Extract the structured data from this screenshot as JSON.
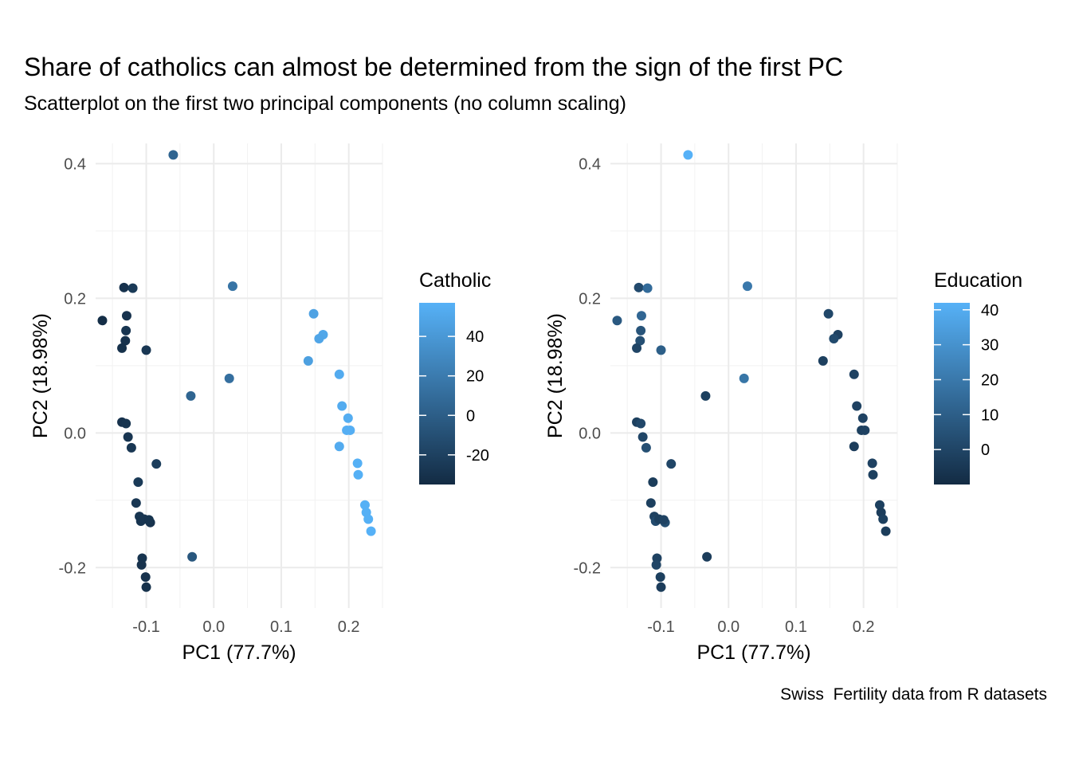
{
  "title": "Share of catholics can almost be determined from the sign of the first PC",
  "subtitle": "Scatterplot on the first two principal components (no column scaling)",
  "caption": "Swiss  Fertility data from R datasets",
  "chart_data": [
    {
      "type": "scatter",
      "xlabel": "PC1 (77.7%)",
      "ylabel": "PC2 (18.98%)",
      "xlim": [
        -0.175,
        0.25
      ],
      "ylim": [
        -0.26,
        0.43
      ],
      "x_ticks": [
        {
          "value": -0.1,
          "label": "-0.1"
        },
        {
          "value": 0.0,
          "label": "0.0"
        },
        {
          "value": 0.1,
          "label": "0.1"
        },
        {
          "value": 0.2,
          "label": "0.2"
        }
      ],
      "y_ticks": [
        {
          "value": -0.2,
          "label": "-0.2"
        },
        {
          "value": 0.0,
          "label": "0.0"
        },
        {
          "value": 0.2,
          "label": "0.2"
        },
        {
          "value": 0.4,
          "label": "0.4"
        }
      ],
      "grid": true,
      "legend": {
        "title": "Catholic",
        "placement": "right",
        "range": [
          -35,
          57
        ],
        "ticks": [
          {
            "value": -20,
            "label": "-20"
          },
          {
            "value": 0,
            "label": "0"
          },
          {
            "value": 20,
            "label": "20"
          },
          {
            "value": 40,
            "label": "40"
          }
        ],
        "color_low": "#132B43",
        "color_high": "#56B1F7"
      },
      "points": [
        {
          "x": -0.06,
          "y": 0.413,
          "c": 5
        },
        {
          "x": -0.133,
          "y": 0.216,
          "c": -30
        },
        {
          "x": -0.12,
          "y": 0.215,
          "c": -25
        },
        {
          "x": 0.028,
          "y": 0.218,
          "c": 15
        },
        {
          "x": -0.165,
          "y": 0.167,
          "c": -33
        },
        {
          "x": -0.129,
          "y": 0.174,
          "c": -30
        },
        {
          "x": -0.13,
          "y": 0.152,
          "c": -28
        },
        {
          "x": -0.131,
          "y": 0.137,
          "c": -30
        },
        {
          "x": -0.136,
          "y": 0.126,
          "c": -31
        },
        {
          "x": -0.1,
          "y": 0.123,
          "c": -27
        },
        {
          "x": 0.148,
          "y": 0.177,
          "c": 47
        },
        {
          "x": 0.162,
          "y": 0.146,
          "c": 50
        },
        {
          "x": 0.156,
          "y": 0.14,
          "c": 49
        },
        {
          "x": 0.14,
          "y": 0.107,
          "c": 45
        },
        {
          "x": 0.186,
          "y": 0.087,
          "c": 53
        },
        {
          "x": -0.034,
          "y": 0.055,
          "c": 5
        },
        {
          "x": 0.023,
          "y": 0.081,
          "c": 12
        },
        {
          "x": 0.19,
          "y": 0.04,
          "c": 53
        },
        {
          "x": 0.199,
          "y": 0.022,
          "c": 54
        },
        {
          "x": 0.197,
          "y": 0.004,
          "c": 55
        },
        {
          "x": 0.202,
          "y": 0.004,
          "c": 55
        },
        {
          "x": 0.186,
          "y": -0.02,
          "c": 53
        },
        {
          "x": -0.136,
          "y": 0.016,
          "c": -30
        },
        {
          "x": -0.13,
          "y": 0.014,
          "c": -29
        },
        {
          "x": -0.127,
          "y": -0.006,
          "c": -28
        },
        {
          "x": -0.122,
          "y": -0.022,
          "c": -27
        },
        {
          "x": 0.213,
          "y": -0.045,
          "c": 56
        },
        {
          "x": 0.214,
          "y": -0.062,
          "c": 56
        },
        {
          "x": -0.085,
          "y": -0.046,
          "c": -22
        },
        {
          "x": -0.112,
          "y": -0.073,
          "c": -25
        },
        {
          "x": -0.115,
          "y": -0.104,
          "c": -27
        },
        {
          "x": -0.11,
          "y": -0.124,
          "c": -28
        },
        {
          "x": -0.108,
          "y": -0.131,
          "c": -29
        },
        {
          "x": -0.103,
          "y": -0.128,
          "c": -28
        },
        {
          "x": -0.094,
          "y": -0.133,
          "c": -30
        },
        {
          "x": -0.096,
          "y": -0.129,
          "c": -29
        },
        {
          "x": 0.224,
          "y": -0.107,
          "c": 56
        },
        {
          "x": 0.226,
          "y": -0.118,
          "c": 56
        },
        {
          "x": 0.229,
          "y": -0.128,
          "c": 56
        },
        {
          "x": 0.233,
          "y": -0.146,
          "c": 57
        },
        {
          "x": -0.106,
          "y": -0.186,
          "c": -29
        },
        {
          "x": -0.107,
          "y": -0.196,
          "c": -30
        },
        {
          "x": -0.032,
          "y": -0.184,
          "c": -5
        },
        {
          "x": -0.101,
          "y": -0.214,
          "c": -30
        },
        {
          "x": -0.1,
          "y": -0.229,
          "c": -31
        }
      ]
    },
    {
      "type": "scatter",
      "xlabel": "PC1 (77.7%)",
      "ylabel": "PC2 (18.98%)",
      "xlim": [
        -0.175,
        0.25
      ],
      "ylim": [
        -0.26,
        0.43
      ],
      "x_ticks": [
        {
          "value": -0.1,
          "label": "-0.1"
        },
        {
          "value": 0.0,
          "label": "0.0"
        },
        {
          "value": 0.1,
          "label": "0.1"
        },
        {
          "value": 0.2,
          "label": "0.2"
        }
      ],
      "y_ticks": [
        {
          "value": -0.2,
          "label": "-0.2"
        },
        {
          "value": 0.0,
          "label": "0.0"
        },
        {
          "value": 0.2,
          "label": "0.2"
        },
        {
          "value": 0.4,
          "label": "0.4"
        }
      ],
      "grid": true,
      "legend": {
        "title": "Education",
        "placement": "right",
        "range": [
          -10,
          42
        ],
        "ticks": [
          {
            "value": 0,
            "label": "0"
          },
          {
            "value": 10,
            "label": "10"
          },
          {
            "value": 20,
            "label": "20"
          },
          {
            "value": 30,
            "label": "30"
          },
          {
            "value": 40,
            "label": "40"
          }
        ],
        "color_low": "#132B43",
        "color_high": "#56B1F7"
      },
      "points": [
        {
          "x": -0.06,
          "y": 0.413,
          "c": 42
        },
        {
          "x": -0.133,
          "y": 0.216,
          "c": 2
        },
        {
          "x": -0.12,
          "y": 0.215,
          "c": 15
        },
        {
          "x": 0.028,
          "y": 0.218,
          "c": 20
        },
        {
          "x": -0.165,
          "y": 0.167,
          "c": 8
        },
        {
          "x": -0.129,
          "y": 0.174,
          "c": 13
        },
        {
          "x": -0.13,
          "y": 0.152,
          "c": 6
        },
        {
          "x": -0.131,
          "y": 0.137,
          "c": 4
        },
        {
          "x": -0.136,
          "y": 0.126,
          "c": 0
        },
        {
          "x": -0.1,
          "y": 0.123,
          "c": 10
        },
        {
          "x": 0.148,
          "y": 0.177,
          "c": 1
        },
        {
          "x": 0.162,
          "y": 0.146,
          "c": -1
        },
        {
          "x": 0.156,
          "y": 0.14,
          "c": 2
        },
        {
          "x": 0.14,
          "y": 0.107,
          "c": -2
        },
        {
          "x": 0.186,
          "y": 0.087,
          "c": -1
        },
        {
          "x": -0.034,
          "y": 0.055,
          "c": -2
        },
        {
          "x": 0.023,
          "y": 0.081,
          "c": 19
        },
        {
          "x": 0.19,
          "y": 0.04,
          "c": -1
        },
        {
          "x": 0.199,
          "y": 0.022,
          "c": -1
        },
        {
          "x": 0.197,
          "y": 0.004,
          "c": -2
        },
        {
          "x": 0.202,
          "y": 0.004,
          "c": -1
        },
        {
          "x": 0.186,
          "y": -0.02,
          "c": -3
        },
        {
          "x": -0.136,
          "y": 0.016,
          "c": -2
        },
        {
          "x": -0.13,
          "y": 0.014,
          "c": 1
        },
        {
          "x": -0.127,
          "y": -0.006,
          "c": 0
        },
        {
          "x": -0.122,
          "y": -0.022,
          "c": 4
        },
        {
          "x": 0.213,
          "y": -0.045,
          "c": -1
        },
        {
          "x": 0.214,
          "y": -0.062,
          "c": -2
        },
        {
          "x": -0.085,
          "y": -0.046,
          "c": 0
        },
        {
          "x": -0.112,
          "y": -0.073,
          "c": -3
        },
        {
          "x": -0.115,
          "y": -0.104,
          "c": -2
        },
        {
          "x": -0.11,
          "y": -0.124,
          "c": -1
        },
        {
          "x": -0.108,
          "y": -0.131,
          "c": 2
        },
        {
          "x": -0.103,
          "y": -0.128,
          "c": -2
        },
        {
          "x": -0.094,
          "y": -0.133,
          "c": 3
        },
        {
          "x": -0.096,
          "y": -0.129,
          "c": -1
        },
        {
          "x": 0.224,
          "y": -0.107,
          "c": -2
        },
        {
          "x": 0.226,
          "y": -0.118,
          "c": -3
        },
        {
          "x": 0.229,
          "y": -0.128,
          "c": -2
        },
        {
          "x": 0.233,
          "y": -0.146,
          "c": -3
        },
        {
          "x": -0.106,
          "y": -0.186,
          "c": -1
        },
        {
          "x": -0.107,
          "y": -0.196,
          "c": 0
        },
        {
          "x": -0.032,
          "y": -0.184,
          "c": -3
        },
        {
          "x": -0.101,
          "y": -0.214,
          "c": -2
        },
        {
          "x": -0.1,
          "y": -0.229,
          "c": -3
        }
      ]
    }
  ]
}
